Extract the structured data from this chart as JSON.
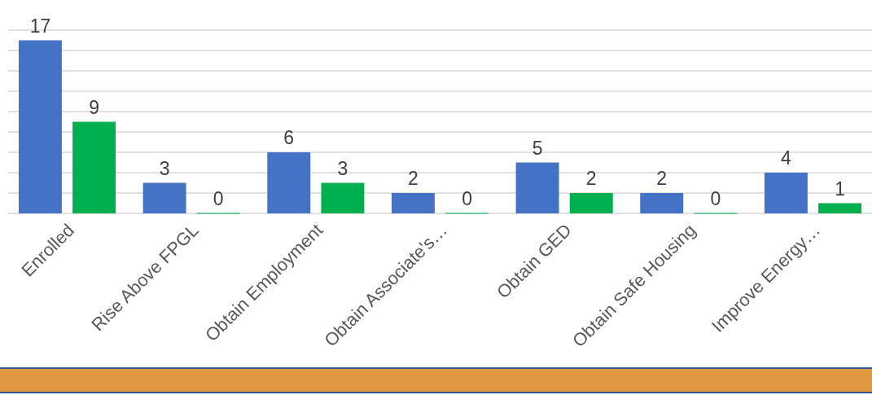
{
  "chart_data": {
    "type": "bar",
    "categories": [
      "Enrolled",
      "Rise Above FPGL",
      "Obtain Employment",
      "Obtain Associate's…",
      "Obtain GED",
      "Obtain Safe Housing",
      "Improve Energy…"
    ],
    "series": [
      {
        "color": "#4472c4",
        "values": [
          17,
          3,
          6,
          2,
          5,
          2,
          4
        ]
      },
      {
        "color": "#00b050",
        "values": [
          9,
          0,
          3,
          0,
          2,
          0,
          1
        ]
      }
    ],
    "ylim": [
      0,
      18
    ],
    "yticks": [
      {
        "value": 0,
        "label": null
      },
      {
        "value": 2,
        "label": null
      },
      {
        "value": 4,
        "label": null
      },
      {
        "value": 6,
        "label": null
      },
      {
        "value": 8,
        "label": null
      },
      {
        "value": 10,
        "label": null
      },
      {
        "value": 12,
        "label": null
      },
      {
        "value": 14,
        "label": null
      },
      {
        "value": 16,
        "label": null
      },
      {
        "value": 18,
        "label": null
      }
    ],
    "grid": "y",
    "data_labels": true,
    "tick_labels": "x"
  }
}
